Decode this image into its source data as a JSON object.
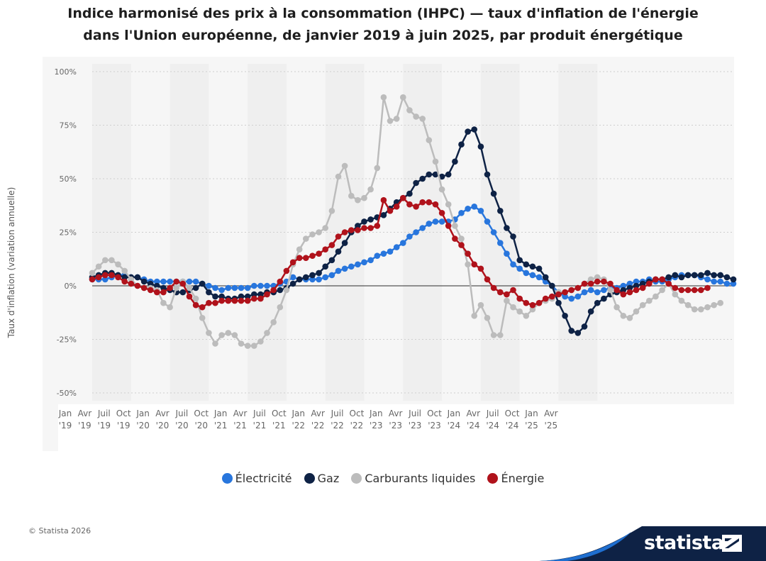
{
  "title": {
    "line1": "Indice harmonisé des prix à la consommation (IHPC) — taux d'inflation de l'énergie",
    "line2": "dans l'Union européenne, de janvier 2019 à juin 2025, par produit énergétique"
  },
  "footer": {
    "copyright": "© Statista 2026",
    "brand": "statista"
  },
  "colors": {
    "electricite": "#2876dd",
    "gaz": "#0e2245",
    "carburants": "#bcbcbc",
    "energie": "#b0121b"
  },
  "chart_data": {
    "type": "line",
    "title": "Indice harmonisé des prix à la consommation (IHPC) — taux d'inflation de l'énergie dans l'Union européenne, de janvier 2019 à juin 2025, par produit énergétique",
    "xlabel": "",
    "ylabel": "Taux d'inflation (variation annuelle)",
    "ylim": [
      -50,
      100
    ],
    "yticks": [
      "100%",
      "75%",
      "50%",
      "25%",
      "0%",
      "-25%",
      "-50%"
    ],
    "ytick_values": [
      100,
      75,
      50,
      25,
      0,
      -25,
      -50
    ],
    "xticks": [
      {
        "month": "Jan",
        "year": "'19"
      },
      {
        "month": "Avr",
        "year": "'19"
      },
      {
        "month": "Juil",
        "year": "'19"
      },
      {
        "month": "Oct",
        "year": "'19"
      },
      {
        "month": "Jan",
        "year": "'20"
      },
      {
        "month": "Avr",
        "year": "'20"
      },
      {
        "month": "Juil",
        "year": "'20"
      },
      {
        "month": "Oct",
        "year": "'20"
      },
      {
        "month": "Jan",
        "year": "'21"
      },
      {
        "month": "Avr",
        "year": "'21"
      },
      {
        "month": "Juil",
        "year": "'21"
      },
      {
        "month": "Oct",
        "year": "'21"
      },
      {
        "month": "Jan",
        "year": "'22"
      },
      {
        "month": "Avr",
        "year": "'22"
      },
      {
        "month": "Juil",
        "year": "'22"
      },
      {
        "month": "Oct",
        "year": "'22"
      },
      {
        "month": "Jan",
        "year": "'23"
      },
      {
        "month": "Avr",
        "year": "'23"
      },
      {
        "month": "Juil",
        "year": "'23"
      },
      {
        "month": "Oct",
        "year": "'23"
      },
      {
        "month": "Jan",
        "year": "'24"
      },
      {
        "month": "Avr",
        "year": "'24"
      },
      {
        "month": "Juil",
        "year": "'24"
      },
      {
        "month": "Oct",
        "year": "'24"
      },
      {
        "month": "Jan",
        "year": "'25"
      },
      {
        "month": "Avr",
        "year": "'25"
      }
    ],
    "x_start": "2019-01",
    "x_end": "2025-06",
    "grid": true,
    "legend_position": "bottom",
    "series": [
      {
        "name": "Électricité",
        "color_key": "electricite",
        "values": [
          3,
          3,
          3,
          4,
          5,
          5,
          4,
          4,
          3,
          2,
          2,
          2,
          2,
          2,
          2,
          2,
          2,
          1,
          0,
          -1,
          -2,
          -1,
          -1,
          -1,
          -1,
          0,
          0,
          0,
          0,
          1,
          2,
          4,
          3,
          3,
          3,
          3,
          4,
          5,
          7,
          8,
          9,
          10,
          11,
          12,
          14,
          15,
          16,
          18,
          20,
          23,
          25,
          27,
          29,
          30,
          30,
          30,
          31,
          34,
          36,
          37,
          35,
          30,
          25,
          20,
          15,
          10,
          8,
          6,
          5,
          4,
          2,
          0,
          -3,
          -5,
          -6,
          -5,
          -3,
          -2,
          -3,
          -2,
          -1,
          -1,
          0,
          1,
          2,
          2,
          3,
          2,
          2,
          3,
          4,
          5,
          5,
          5,
          4,
          3,
          2,
          2,
          1,
          1
        ]
      },
      {
        "name": "Gaz",
        "color_key": "gaz",
        "values": [
          4,
          5,
          6,
          6,
          5,
          4,
          4,
          4,
          2,
          1,
          0,
          -1,
          -2,
          -3,
          -3,
          -2,
          -1,
          1,
          -3,
          -5,
          -5,
          -6,
          -6,
          -5,
          -5,
          -4,
          -4,
          -3,
          -3,
          -2,
          -1,
          1,
          3,
          4,
          5,
          6,
          9,
          12,
          16,
          20,
          25,
          28,
          30,
          31,
          32,
          33,
          36,
          39,
          41,
          43,
          48,
          50,
          52,
          52,
          51,
          52,
          58,
          66,
          72,
          73,
          65,
          52,
          43,
          35,
          27,
          23,
          12,
          10,
          9,
          8,
          4,
          0,
          -8,
          -14,
          -21,
          -22,
          -19,
          -12,
          -8,
          -6,
          -4,
          -3,
          -2,
          -1,
          0,
          1,
          2,
          3,
          3,
          4,
          5,
          4,
          5,
          5,
          5,
          6,
          5,
          5,
          4,
          3
        ]
      },
      {
        "name": "Carburants liquides",
        "color_key": "carburants",
        "values": [
          6,
          9,
          12,
          12,
          10,
          7,
          3,
          0,
          -1,
          -1,
          -2,
          -8,
          -10,
          -1,
          2,
          -1,
          -6,
          -15,
          -22,
          -27,
          -23,
          -22,
          -23,
          -27,
          -28,
          -28,
          -26,
          -22,
          -17,
          -10,
          -2,
          10,
          17,
          22,
          24,
          25,
          27,
          35,
          51,
          56,
          42,
          40,
          41,
          45,
          55,
          88,
          77,
          78,
          88,
          82,
          79,
          78,
          68,
          58,
          45,
          38,
          28,
          22,
          10,
          -14,
          -9,
          -15,
          -23,
          -23,
          -7,
          -10,
          -12,
          -14,
          -11,
          -8,
          -7,
          -6,
          -3,
          -3,
          -2,
          -1,
          1,
          3,
          4,
          3,
          -2,
          -10,
          -14,
          -15,
          -12,
          -9,
          -7,
          -5,
          -2,
          1,
          -4,
          -7,
          -9,
          -11,
          -11,
          -10,
          -9,
          -8
        ]
      },
      {
        "name": "Énergie",
        "color_key": "energie",
        "values": [
          3,
          4,
          5,
          5,
          4,
          2,
          1,
          0,
          -1,
          -2,
          -3,
          -3,
          -1,
          2,
          1,
          -5,
          -9,
          -10,
          -8,
          -8,
          -7,
          -7,
          -7,
          -7,
          -7,
          -6,
          -6,
          -4,
          -2,
          2,
          7,
          11,
          13,
          13,
          14,
          15,
          17,
          19,
          23,
          25,
          26,
          26,
          27,
          27,
          28,
          40,
          35,
          37,
          41,
          38,
          37,
          39,
          39,
          38,
          34,
          28,
          22,
          19,
          15,
          10,
          8,
          3,
          -1,
          -3,
          -4,
          -2,
          -6,
          -8,
          -9,
          -8,
          -6,
          -5,
          -4,
          -3,
          -2,
          -1,
          1,
          1,
          2,
          2,
          1,
          -2,
          -4,
          -3,
          -2,
          -1,
          1,
          3,
          3,
          1,
          -1,
          -2,
          -2,
          -2,
          -2,
          -1
        ]
      }
    ]
  }
}
